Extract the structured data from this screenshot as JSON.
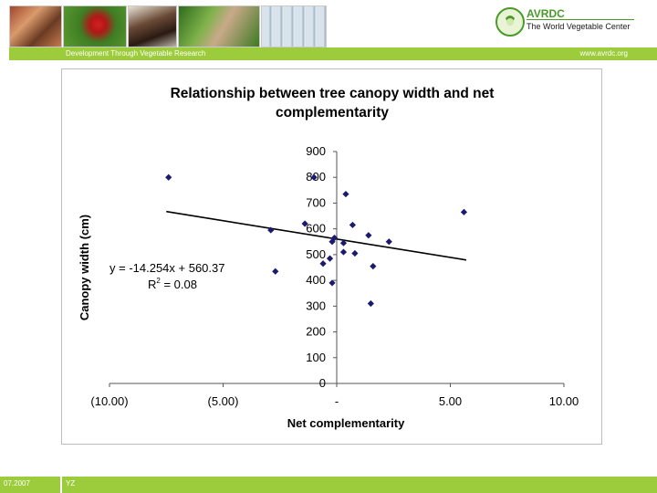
{
  "header": {
    "tagline": "Development Through Vegetable Research",
    "website": "www.avrdc.org",
    "logo_title": "AVRDC",
    "logo_subtitle": "The World Vegetable Center",
    "photos": [
      "photo-mother-child",
      "photo-tomatoes",
      "photo-children",
      "photo-vegetable-field",
      "photo-lab-tubes"
    ]
  },
  "footer": {
    "date": "07.2007",
    "initials": "YZ"
  },
  "chart_data": {
    "type": "scatter",
    "title": "Relationship between tree canopy width and net complementarity",
    "xlabel": "Net complementarity",
    "ylabel": "Canopy width (cm)",
    "xlim": [
      -10,
      10
    ],
    "ylim": [
      0,
      900
    ],
    "xticks": [
      -10,
      -5,
      0,
      5,
      10
    ],
    "xtick_labels": [
      "(10.00)",
      "(5.00)",
      "-",
      "5.00",
      "10.00"
    ],
    "yticks": [
      0,
      100,
      200,
      300,
      400,
      500,
      600,
      700,
      800,
      900
    ],
    "ytick_labels": [
      "0",
      "100",
      "200",
      "300",
      "400",
      "500",
      "600",
      "700",
      "800",
      "900"
    ],
    "points": [
      {
        "x": -7.4,
        "y": 800
      },
      {
        "x": -1.0,
        "y": 800
      },
      {
        "x": 0.4,
        "y": 735
      },
      {
        "x": 5.6,
        "y": 665
      },
      {
        "x": -1.4,
        "y": 620
      },
      {
        "x": 0.7,
        "y": 615
      },
      {
        "x": -2.9,
        "y": 595
      },
      {
        "x": 1.4,
        "y": 575
      },
      {
        "x": -0.1,
        "y": 565
      },
      {
        "x": -0.2,
        "y": 550
      },
      {
        "x": 0.3,
        "y": 545
      },
      {
        "x": 2.3,
        "y": 550
      },
      {
        "x": 0.3,
        "y": 510
      },
      {
        "x": 0.8,
        "y": 505
      },
      {
        "x": -0.3,
        "y": 485
      },
      {
        "x": -0.6,
        "y": 465
      },
      {
        "x": 1.6,
        "y": 455
      },
      {
        "x": -2.7,
        "y": 435
      },
      {
        "x": -0.2,
        "y": 390
      },
      {
        "x": 1.5,
        "y": 310
      }
    ],
    "trendline": {
      "slope": -14.254,
      "intercept": 560.37,
      "x_range": [
        -7.5,
        5.7
      ]
    },
    "equation": "y = -14.254x + 560.37",
    "r2_prefix": "R",
    "r2_exp": "2",
    "r2_value": " = 0.08",
    "grid": false,
    "legend": "none",
    "marker_color": "#1a1a6e"
  }
}
